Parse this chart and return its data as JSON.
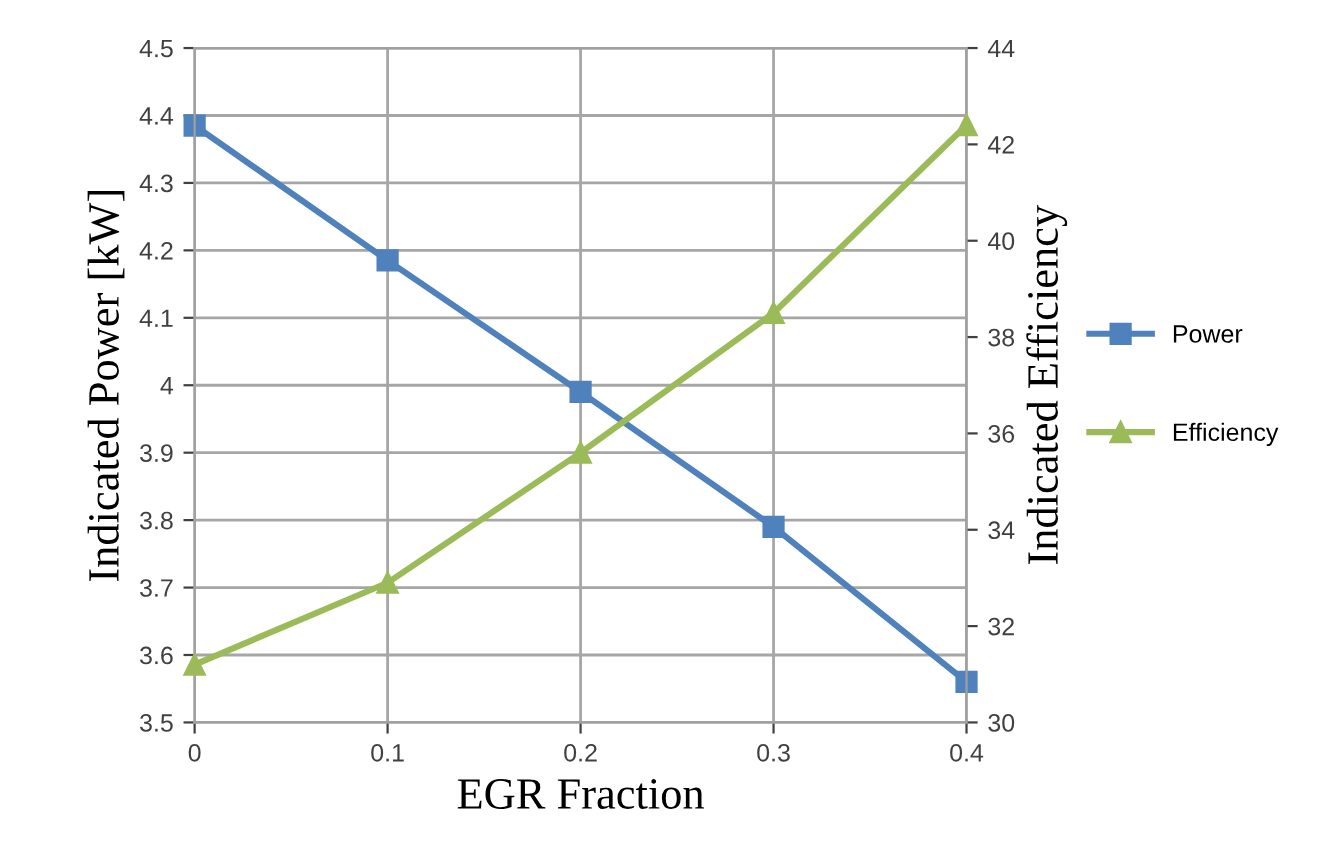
{
  "chart_data": {
    "type": "line",
    "x": [
      0,
      0.1,
      0.2,
      0.3,
      0.4
    ],
    "xlabel": "EGR Fraction",
    "ylabel": "Indicated Power [kW]",
    "y2label": "Indicated Efficiency",
    "xlim": [
      0,
      0.4
    ],
    "xticks": [
      0,
      0.1,
      0.2,
      0.3,
      0.4
    ],
    "ylim": [
      3.5,
      4.5
    ],
    "yticks": [
      3.5,
      3.6,
      3.7,
      3.8,
      3.9,
      {
        "value": 4.0,
        "label": "4"
      },
      4.1,
      4.2,
      4.3,
      4.4,
      4.5
    ],
    "y2lim": [
      30,
      44
    ],
    "y2ticks": [
      30,
      32,
      34,
      36,
      38,
      40,
      42,
      44
    ],
    "grid": true,
    "legend": "right",
    "series": [
      {
        "name": "Power",
        "color": "#4f81bd",
        "marker": "square",
        "values": [
          4.385,
          4.185,
          3.99,
          3.79,
          3.56
        ]
      },
      {
        "name": "Efficiency",
        "color": "#9bbb59",
        "marker": "triangle",
        "axis": "y2",
        "values": [
          31.2,
          32.9,
          35.6,
          38.5,
          42.4
        ]
      }
    ]
  }
}
